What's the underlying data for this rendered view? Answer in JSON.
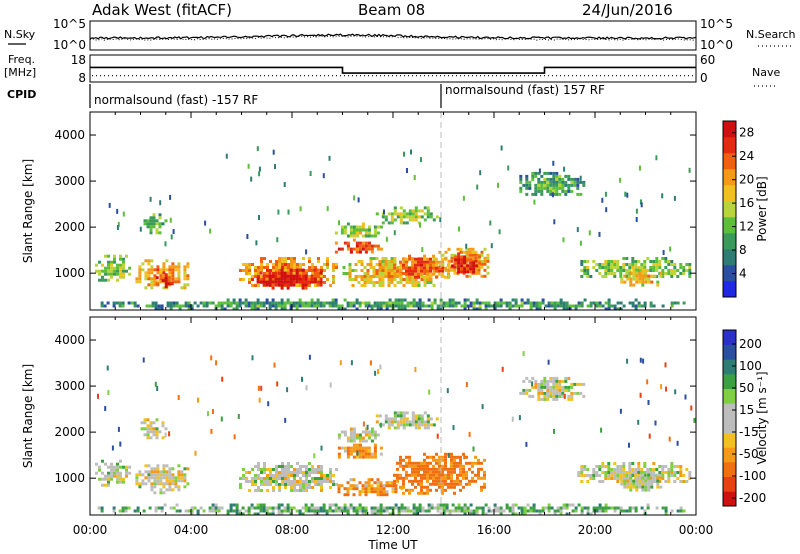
{
  "header": {
    "station": "Adak West (fitACF)",
    "beam": "Beam 08",
    "date": "24/Jun/2016"
  },
  "side_labels": {
    "nsky": "N.Sky",
    "freq_line1": "Freq.",
    "freq_line2": "[MHz]",
    "cpid": "CPID",
    "nsearch": "N.Search",
    "nave": "Nave"
  },
  "cpid_segments": [
    {
      "label": "normalsound (fast) -157 RF",
      "start_hour": 0,
      "end_hour": 14
    },
    {
      "label": "normalsound (fast) 157 RF",
      "start_hour": 14,
      "end_hour": 24
    }
  ],
  "colors": {
    "power": [
      "#1e28e6",
      "#2a4ea0",
      "#2e7d74",
      "#3a9a5a",
      "#5cbf3a",
      "#b8d43a",
      "#f0c020",
      "#f59a16",
      "#f06010",
      "#e42a10",
      "#d01010"
    ],
    "velocity_positive": [
      "#2a30c8",
      "#2a4ea0",
      "#2e7d74",
      "#3aa040",
      "#7fd040"
    ],
    "velocity_near_zero": "#bdbdbd",
    "velocity_negative": [
      "#f2c020",
      "#f59a16",
      "#f07010",
      "#e84010",
      "#d01010"
    ]
  },
  "chart_data": [
    {
      "type": "line",
      "name": "nsky-nsearch-panel",
      "x_unit": "hour UT",
      "left_axis": {
        "label": "N.Sky",
        "ticks": [
          "10^5",
          "10^0"
        ]
      },
      "right_axis": {
        "label": "N.Search",
        "ticks": [
          "10^5",
          "10^0"
        ]
      }
    },
    {
      "type": "line",
      "name": "freq-nave-panel",
      "left_axis": {
        "label": "Freq. [MHz]",
        "ticks": [
          "18",
          "8"
        ],
        "ylim": [
          8,
          18
        ]
      },
      "right_axis": {
        "label": "Nave",
        "ticks": [
          "60",
          "0"
        ],
        "ylim": [
          0,
          60
        ]
      },
      "freq_mhz": [
        {
          "start_hour": 0,
          "end_hour": 10,
          "value": 13.4
        },
        {
          "start_hour": 10,
          "end_hour": 18,
          "value": 11.3
        },
        {
          "start_hour": 18,
          "end_hour": 24,
          "value": 13.4
        }
      ],
      "nave_level": 14
    },
    {
      "type": "heatmap",
      "name": "power-panel",
      "ylabel": "Slant Range [km]",
      "yticks": [
        "1000",
        "2000",
        "3000",
        "4000"
      ],
      "ylim": [
        200,
        4500
      ],
      "xlim": [
        0,
        24
      ],
      "colorbar": {
        "label": "Power [dB]",
        "ticks": [
          "4",
          "8",
          "12",
          "16",
          "20",
          "24",
          "28"
        ],
        "range": [
          0,
          30
        ]
      },
      "regions": [
        {
          "hour_start": 0.2,
          "hour_end": 1.6,
          "range_start": 850,
          "range_end": 1400,
          "power_db": 10
        },
        {
          "hour_start": 1.8,
          "hour_end": 3.9,
          "range_start": 700,
          "range_end": 1300,
          "power_db": 17
        },
        {
          "hour_start": 2.6,
          "hour_end": 3.3,
          "range_start": 700,
          "range_end": 1000,
          "power_db": 23
        },
        {
          "hour_start": 2.0,
          "hour_end": 3.0,
          "range_start": 1900,
          "range_end": 2300,
          "power_db": 9
        },
        {
          "hour_start": 5.9,
          "hour_end": 9.8,
          "range_start": 700,
          "range_end": 1350,
          "power_db": 18
        },
        {
          "hour_start": 6.6,
          "hour_end": 9.1,
          "range_start": 650,
          "range_end": 1100,
          "power_db": 25
        },
        {
          "hour_start": 9.7,
          "hour_end": 11.5,
          "range_start": 1450,
          "range_end": 1750,
          "power_db": 22
        },
        {
          "hour_start": 9.7,
          "hour_end": 11.5,
          "range_start": 1800,
          "range_end": 2100,
          "power_db": 11
        },
        {
          "hour_start": 11.2,
          "hour_end": 13.7,
          "range_start": 2100,
          "range_end": 2450,
          "power_db": 10
        },
        {
          "hour_start": 10.0,
          "hour_end": 13.8,
          "range_start": 700,
          "range_end": 1350,
          "power_db": 15
        },
        {
          "hour_start": 12.0,
          "hour_end": 14.2,
          "range_start": 900,
          "range_end": 1400,
          "power_db": 19
        },
        {
          "hour_start": 13.8,
          "hour_end": 15.8,
          "range_start": 900,
          "range_end": 1550,
          "power_db": 17
        },
        {
          "hour_start": 14.3,
          "hour_end": 15.4,
          "range_start": 1050,
          "range_end": 1450,
          "power_db": 24
        },
        {
          "hour_start": 17.0,
          "hour_end": 19.5,
          "range_start": 2700,
          "range_end": 3200,
          "power_db": 7
        },
        {
          "hour_start": 19.3,
          "hour_end": 23.8,
          "range_start": 900,
          "range_end": 1350,
          "power_db": 10
        },
        {
          "hour_start": 21.0,
          "hour_end": 22.6,
          "range_start": 750,
          "range_end": 1100,
          "power_db": 15
        },
        {
          "hour_start": 0.3,
          "hour_end": 23.8,
          "range_start": 250,
          "range_end": 450,
          "power_db": 6
        }
      ]
    },
    {
      "type": "heatmap",
      "name": "velocity-panel",
      "ylabel": "Slant Range [km]",
      "xlabel": "Time UT",
      "yticks": [
        "1000",
        "2000",
        "3000",
        "4000"
      ],
      "ylim": [
        200,
        4500
      ],
      "xlim": [
        0,
        24
      ],
      "xticks": [
        "00:00",
        "04:00",
        "08:00",
        "12:00",
        "16:00",
        "20:00",
        "00:00"
      ],
      "colorbar": {
        "label": "Velocity [m s⁻¹]",
        "ticks": [
          "200",
          "100",
          "50",
          "15",
          "-15",
          "-50",
          "-100",
          "-200"
        ],
        "range": [
          -250,
          250
        ]
      },
      "regions": [
        {
          "hour_start": 0.2,
          "hour_end": 1.6,
          "range_start": 850,
          "range_end": 1400,
          "velocity": 0
        },
        {
          "hour_start": 1.8,
          "hour_end": 3.9,
          "range_start": 700,
          "range_end": 1300,
          "velocity": 0
        },
        {
          "hour_start": 2.0,
          "hour_end": 3.0,
          "range_start": 1900,
          "range_end": 2300,
          "velocity": 0
        },
        {
          "hour_start": 5.9,
          "hour_end": 9.8,
          "range_start": 700,
          "range_end": 1350,
          "velocity": 0
        },
        {
          "hour_start": 9.7,
          "hour_end": 11.5,
          "range_start": 1450,
          "range_end": 1750,
          "velocity": -40
        },
        {
          "hour_start": 9.7,
          "hour_end": 11.5,
          "range_start": 1800,
          "range_end": 2100,
          "velocity": 0
        },
        {
          "hour_start": 11.2,
          "hour_end": 13.7,
          "range_start": 2100,
          "range_end": 2450,
          "velocity": 0
        },
        {
          "hour_start": 9.8,
          "hour_end": 12.3,
          "range_start": 650,
          "range_end": 1000,
          "velocity": -40
        },
        {
          "hour_start": 12.0,
          "hour_end": 15.6,
          "range_start": 700,
          "range_end": 1550,
          "velocity": -60
        },
        {
          "hour_start": 17.0,
          "hour_end": 19.5,
          "range_start": 2700,
          "range_end": 3200,
          "velocity": 0
        },
        {
          "hour_start": 19.3,
          "hour_end": 23.8,
          "range_start": 900,
          "range_end": 1350,
          "velocity": 0
        },
        {
          "hour_start": 21.0,
          "hour_end": 22.6,
          "range_start": 750,
          "range_end": 1100,
          "velocity": 0
        },
        {
          "hour_start": 0.3,
          "hour_end": 23.8,
          "range_start": 250,
          "range_end": 450,
          "velocity": 30
        }
      ]
    }
  ]
}
